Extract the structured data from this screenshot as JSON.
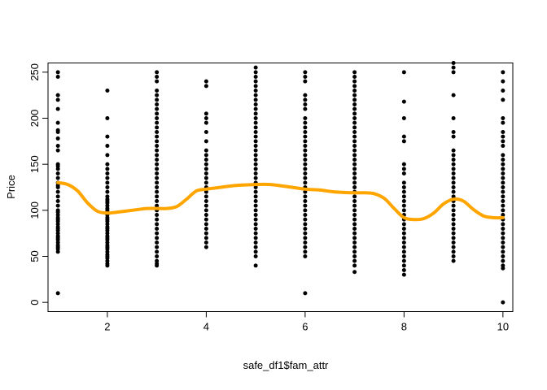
{
  "chart_data": {
    "type": "scatter",
    "title": "",
    "xlabel": "safe_df1$fam_attr",
    "ylabel": "Price",
    "xlim": [
      0.8,
      10.2
    ],
    "ylim": [
      -10,
      260
    ],
    "x_ticks": [
      2,
      4,
      6,
      8,
      10
    ],
    "y_ticks": [
      0,
      50,
      100,
      150,
      200,
      250
    ],
    "grid": false,
    "point_color": "#000000",
    "smooth_color": "#FFA500",
    "series": [
      {
        "name": "points",
        "groups": [
          {
            "x": 1,
            "values": [
              250,
              245,
              225,
              220,
              210,
              195,
              187,
              185,
              178,
              170,
              165,
              150,
              148,
              145,
              140,
              135,
              130,
              127,
              125,
              120,
              115,
              110,
              105,
              100,
              98,
              95,
              92,
              90,
              88,
              85,
              82,
              80,
              78,
              75,
              72,
              70,
              68,
              65,
              62,
              60,
              58,
              55,
              10
            ]
          },
          {
            "x": 2,
            "values": [
              230,
              200,
              180,
              170,
              160,
              150,
              145,
              140,
              135,
              130,
              125,
              120,
              115,
              112,
              110,
              108,
              105,
              102,
              100,
              98,
              95,
              92,
              90,
              88,
              85,
              82,
              80,
              78,
              75,
              72,
              70,
              68,
              65,
              62,
              60,
              58,
              55,
              52,
              50,
              48,
              45,
              42,
              40
            ]
          },
          {
            "x": 3,
            "values": [
              250,
              245,
              240,
              230,
              225,
              220,
              215,
              210,
              205,
              200,
              195,
              190,
              185,
              180,
              175,
              170,
              165,
              160,
              155,
              150,
              145,
              140,
              135,
              130,
              125,
              120,
              115,
              110,
              105,
              100,
              95,
              90,
              85,
              80,
              75,
              70,
              65,
              60,
              55,
              50,
              45,
              42,
              40
            ]
          },
          {
            "x": 4,
            "values": [
              240,
              235,
              205,
              200,
              195,
              185,
              175,
              165,
              160,
              155,
              150,
              145,
              140,
              135,
              130,
              125,
              120,
              115,
              110,
              105,
              100,
              95,
              90,
              85,
              80,
              75,
              70,
              65,
              60
            ]
          },
          {
            "x": 5,
            "values": [
              255,
              250,
              245,
              240,
              235,
              230,
              225,
              220,
              215,
              210,
              205,
              200,
              195,
              190,
              185,
              180,
              175,
              170,
              165,
              160,
              155,
              150,
              145,
              140,
              135,
              130,
              125,
              120,
              115,
              110,
              105,
              100,
              95,
              90,
              85,
              80,
              75,
              70,
              65,
              60,
              55,
              50,
              40
            ]
          },
          {
            "x": 6,
            "values": [
              250,
              245,
              240,
              225,
              220,
              215,
              210,
              200,
              195,
              190,
              185,
              180,
              175,
              170,
              165,
              160,
              155,
              150,
              145,
              140,
              135,
              130,
              125,
              120,
              115,
              110,
              105,
              100,
              95,
              90,
              85,
              80,
              75,
              70,
              65,
              60,
              55,
              50,
              10
            ]
          },
          {
            "x": 7,
            "values": [
              250,
              245,
              240,
              235,
              230,
              225,
              220,
              215,
              210,
              205,
              200,
              195,
              190,
              185,
              180,
              175,
              170,
              165,
              160,
              155,
              150,
              145,
              140,
              135,
              130,
              125,
              120,
              115,
              110,
              105,
              100,
              95,
              90,
              85,
              80,
              75,
              70,
              65,
              60,
              55,
              50,
              45,
              40,
              33
            ]
          },
          {
            "x": 8,
            "values": [
              250,
              218,
              200,
              180,
              175,
              150,
              145,
              140,
              130,
              125,
              120,
              115,
              110,
              105,
              100,
              95,
              90,
              85,
              80,
              75,
              70,
              65,
              60,
              55,
              50,
              45,
              40,
              35,
              30
            ]
          },
          {
            "x": 9,
            "values": [
              260,
              255,
              250,
              225,
              200,
              185,
              180,
              165,
              160,
              155,
              150,
              145,
              140,
              135,
              130,
              125,
              120,
              115,
              110,
              105,
              100,
              95,
              90,
              85,
              80,
              75,
              70,
              65,
              60,
              55,
              50,
              45
            ]
          },
          {
            "x": 10,
            "values": [
              250,
              240,
              230,
              220,
              200,
              195,
              185,
              180,
              175,
              170,
              160,
              155,
              150,
              145,
              140,
              135,
              130,
              125,
              120,
              115,
              110,
              105,
              100,
              95,
              90,
              85,
              80,
              75,
              70,
              65,
              60,
              55,
              50,
              45,
              40,
              37,
              0
            ]
          }
        ]
      },
      {
        "name": "smooth",
        "x": [
          1.0,
          1.2,
          1.4,
          1.6,
          1.8,
          2.0,
          2.2,
          2.5,
          2.8,
          3.0,
          3.2,
          3.4,
          3.6,
          3.8,
          4.0,
          4.3,
          4.6,
          5.0,
          5.3,
          5.6,
          6.0,
          6.3,
          6.6,
          7.0,
          7.2,
          7.4,
          7.6,
          7.8,
          8.0,
          8.2,
          8.4,
          8.6,
          8.8,
          9.0,
          9.2,
          9.4,
          9.6,
          9.8,
          10.0
        ],
        "y": [
          130,
          128,
          121,
          108,
          99,
          97,
          98,
          100,
          102,
          102,
          102,
          104,
          112,
          121,
          123,
          125,
          127,
          128,
          128,
          126,
          123,
          122,
          120,
          119,
          119,
          118,
          113,
          102,
          92,
          90,
          91,
          97,
          107,
          112,
          110,
          101,
          94,
          92,
          92
        ]
      }
    ]
  }
}
